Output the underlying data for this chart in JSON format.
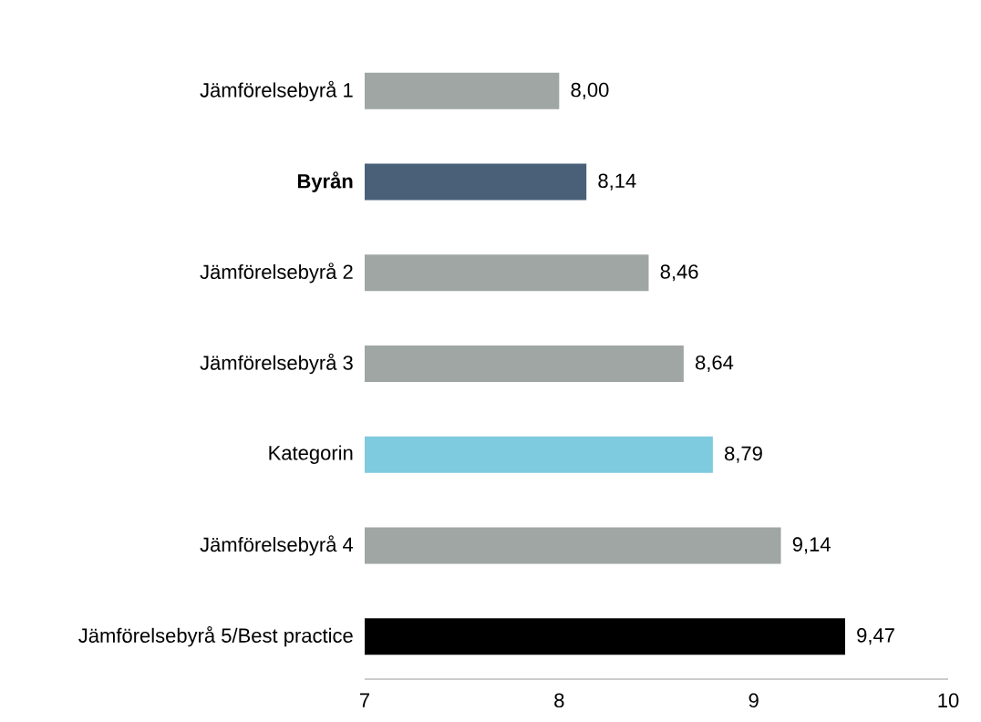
{
  "chart_data": {
    "type": "bar",
    "orientation": "horizontal",
    "categories": [
      "Jämförelsebyrå 1",
      "**Byrån**",
      "Jämförelsebyrå 2",
      "Jämförelsebyrå 3",
      "Kategorin",
      "Jämförelsebyrå 4",
      "Jämförelsebyrå 5/Best practice"
    ],
    "values": [
      8.0,
      8.14,
      8.46,
      8.64,
      8.79,
      9.14,
      9.47
    ],
    "value_labels": [
      "8,00",
      "8,14",
      "8,46",
      "8,64",
      "8,79",
      "9,14",
      "9,47"
    ],
    "colors": [
      "#9fa6a3",
      "#4a6079",
      "#9fa6a3",
      "#9fa6a3",
      "#7ecadf",
      "#9fa6a3",
      "#000000"
    ],
    "xlim": [
      7,
      10
    ],
    "xticks": [
      7,
      8,
      9,
      10
    ]
  }
}
